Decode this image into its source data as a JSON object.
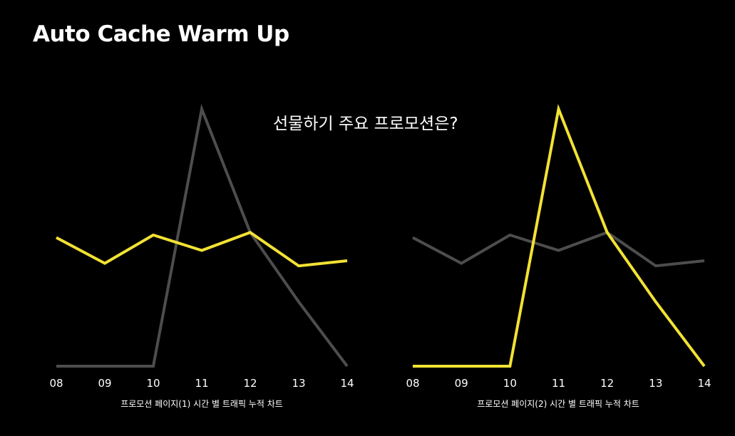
{
  "slide": {
    "title": "Auto Cache Warm Up",
    "question": "선물하기 주요 프로모션은?"
  },
  "colors": {
    "background": "#000000",
    "highlight": "#f2e234",
    "muted": "#4d4d4d",
    "text": "#ffffff"
  },
  "chart_data": [
    {
      "type": "line",
      "title": "",
      "caption": "프로모션 페이지(1) 시간 별 트래픽 누적 차트",
      "xlabel": "",
      "ylabel": "",
      "categories": [
        "08",
        "09",
        "10",
        "11",
        "12",
        "13",
        "14"
      ],
      "ylim": [
        0,
        100
      ],
      "grid": false,
      "series": [
        {
          "name": "",
          "role": "highlight",
          "values": [
            50,
            40,
            51,
            45,
            52,
            39,
            41
          ]
        },
        {
          "name": "",
          "role": "muted",
          "values": [
            0,
            0,
            0,
            100,
            52,
            25,
            0
          ]
        }
      ]
    },
    {
      "type": "line",
      "title": "",
      "caption": "프로모션 페이지(2) 시간 별 트래픽 누적 차트",
      "xlabel": "",
      "ylabel": "",
      "categories": [
        "08",
        "09",
        "10",
        "11",
        "12",
        "13",
        "14"
      ],
      "ylim": [
        0,
        100
      ],
      "grid": false,
      "series": [
        {
          "name": "",
          "role": "muted",
          "values": [
            50,
            40,
            51,
            45,
            52,
            39,
            41
          ]
        },
        {
          "name": "",
          "role": "highlight",
          "values": [
            0,
            0,
            0,
            100,
            52,
            25,
            0
          ]
        }
      ]
    }
  ]
}
